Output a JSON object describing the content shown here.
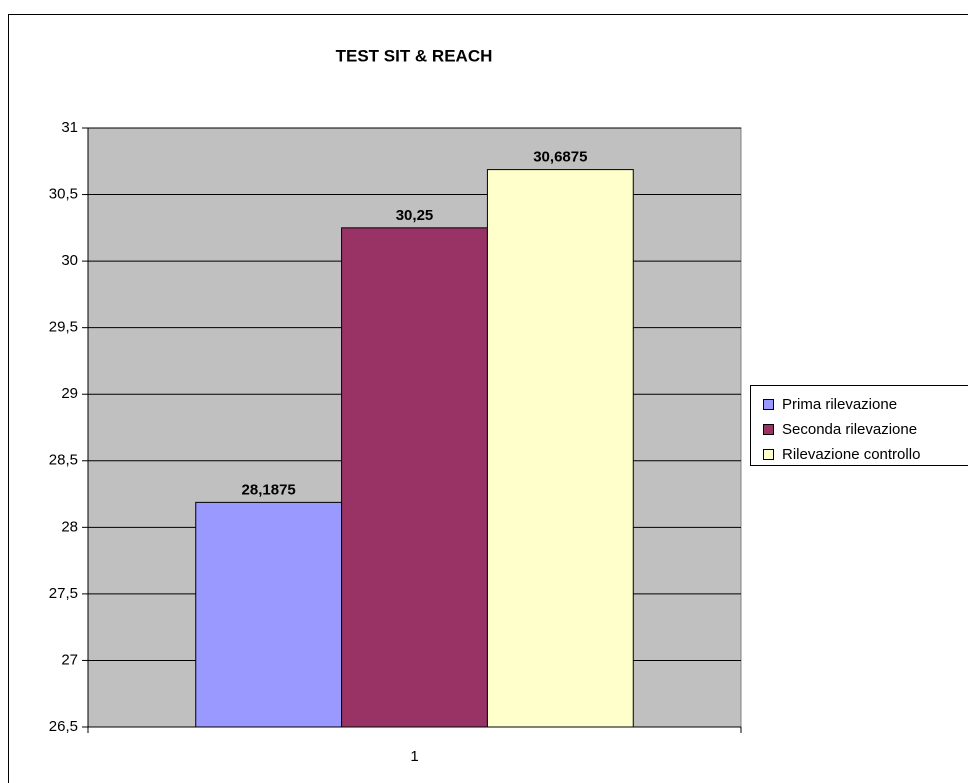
{
  "chart_data": {
    "type": "bar",
    "title": "TEST SIT & REACH",
    "categories": [
      "1"
    ],
    "series": [
      {
        "name": "Prima rilevazione",
        "color": "#9999ff",
        "values": [
          28.1875
        ],
        "value_labels": [
          "28,1875"
        ]
      },
      {
        "name": "Seconda rilevazione",
        "color": "#993366",
        "values": [
          30.25
        ],
        "value_labels": [
          "30,25"
        ]
      },
      {
        "name": "Rilevazione controllo",
        "color": "#ffffcc",
        "values": [
          30.6875
        ],
        "value_labels": [
          "30,6875"
        ]
      }
    ],
    "ylim": [
      26.5,
      31
    ],
    "yticks": [
      {
        "value": 26.5,
        "label": "26,5"
      },
      27,
      {
        "value": 27.5,
        "label": "27,5"
      },
      28,
      {
        "value": 28.5,
        "label": "28,5"
      },
      29,
      {
        "value": 29.5,
        "label": "29,5"
      },
      30,
      {
        "value": 30.5,
        "label": "30,5"
      },
      31
    ],
    "grid": true,
    "plot_background": "#c0c0c0",
    "legend": "right"
  }
}
